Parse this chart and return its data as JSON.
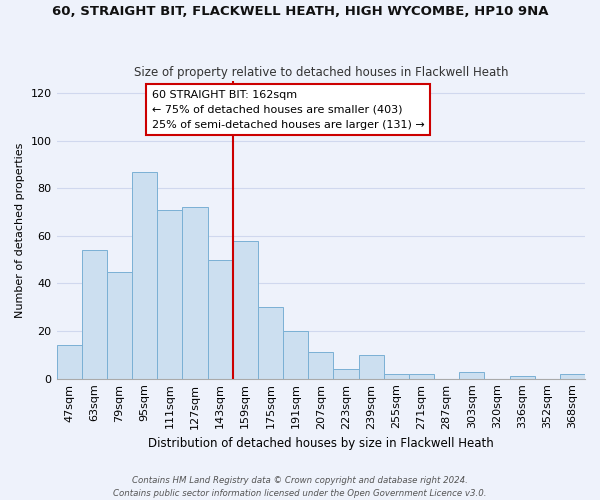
{
  "title": "60, STRAIGHT BIT, FLACKWELL HEATH, HIGH WYCOMBE, HP10 9NA",
  "subtitle": "Size of property relative to detached houses in Flackwell Heath",
  "xlabel": "Distribution of detached houses by size in Flackwell Heath",
  "ylabel": "Number of detached properties",
  "bar_color": "#ccdff0",
  "bar_edge_color": "#7ab0d4",
  "categories": [
    "47sqm",
    "63sqm",
    "79sqm",
    "95sqm",
    "111sqm",
    "127sqm",
    "143sqm",
    "159sqm",
    "175sqm",
    "191sqm",
    "207sqm",
    "223sqm",
    "239sqm",
    "255sqm",
    "271sqm",
    "287sqm",
    "303sqm",
    "320sqm",
    "336sqm",
    "352sqm",
    "368sqm"
  ],
  "values": [
    14,
    54,
    45,
    87,
    71,
    72,
    50,
    58,
    30,
    20,
    11,
    4,
    10,
    2,
    2,
    0,
    3,
    0,
    1,
    0,
    2
  ],
  "vline_color": "#cc0000",
  "annotation_line1": "60 STRAIGHT BIT: 162sqm",
  "annotation_line2": "← 75% of detached houses are smaller (403)",
  "annotation_line3": "25% of semi-detached houses are larger (131) →",
  "annotation_box_color": "#ffffff",
  "annotation_box_edge": "#cc0000",
  "ylim": [
    0,
    125
  ],
  "yticks": [
    0,
    20,
    40,
    60,
    80,
    100,
    120
  ],
  "footer1": "Contains HM Land Registry data © Crown copyright and database right 2024.",
  "footer2": "Contains public sector information licensed under the Open Government Licence v3.0.",
  "bg_color": "#eef2fb",
  "grid_color": "#d0d8ee"
}
